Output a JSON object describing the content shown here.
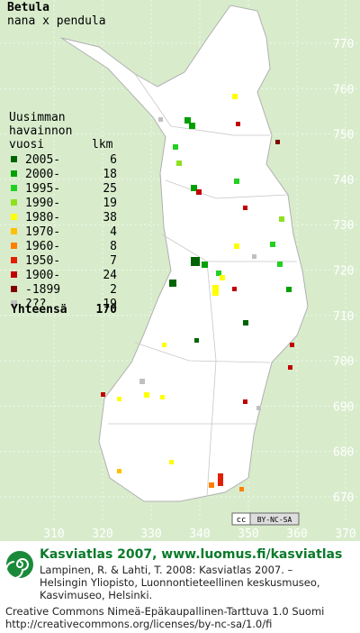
{
  "title": [
    "Betula",
    "nana x pendula"
  ],
  "legend": {
    "heading": [
      "Uusimman",
      "havainnon",
      "vuosi"
    ],
    "count_heading": "lkm",
    "items": [
      {
        "label": "2005-",
        "count": 6,
        "color": "#006400"
      },
      {
        "label": "2000-",
        "count": 18,
        "color": "#00a000"
      },
      {
        "label": "1995-",
        "count": 25,
        "color": "#22d022"
      },
      {
        "label": "1990-",
        "count": 19,
        "color": "#90e020"
      },
      {
        "label": "1980-",
        "count": 38,
        "color": "#ffff00"
      },
      {
        "label": "1970-",
        "count": 4,
        "color": "#ffc000"
      },
      {
        "label": "1960-",
        "count": 8,
        "color": "#ff7f00"
      },
      {
        "label": "1950-",
        "count": 7,
        "color": "#e02000"
      },
      {
        "label": "1900-",
        "count": 24,
        "color": "#c00000"
      },
      {
        "label": "-1899",
        "count": 2,
        "color": "#800000"
      },
      {
        "label": "???",
        "count": 19,
        "color": "#c0c0c0"
      }
    ],
    "total_label": "Yhteensä",
    "total": 170
  },
  "grid": {
    "x_labels": [
      310,
      320,
      330,
      340,
      350,
      360,
      370
    ],
    "y_labels": [
      670,
      680,
      690,
      700,
      710,
      720,
      730,
      740,
      750,
      760,
      770
    ]
  },
  "license_badge": [
    "cc",
    "BY-NC-SA"
  ],
  "footer": {
    "heading": "Kasviatlas 2007, www.luomus.fi/kasviatlas",
    "citation": [
      "Lampinen, R. & Lahti, T. 2008: Kasviatlas 2007. –",
      "Helsingin Yliopisto, Luonnontieteellinen keskusmuseo,",
      "Kasvimuseo, Helsinki."
    ],
    "license": [
      "Creative Commons Nimeä-Epäkaupallinen-Tarttuva 1.0 Suomi",
      "http://creativecommons.org/licenses/by-nc-sa/1.0/fi"
    ]
  }
}
